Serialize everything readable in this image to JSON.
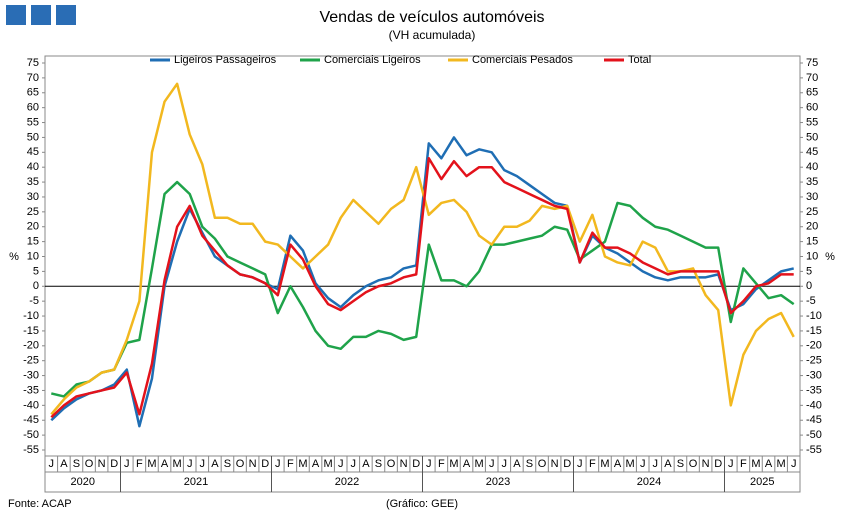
{
  "chart_data": {
    "type": "line",
    "title": "Vendas de veículos automóveis",
    "subtitle": "(VH acumulada)",
    "y_unit": "%",
    "source": "Fonte: ACAP",
    "credit": "(Gráfico: GEE)",
    "categories": [
      "J",
      "A",
      "S",
      "O",
      "N",
      "D",
      "J",
      "F",
      "M",
      "A",
      "M",
      "J",
      "J",
      "A",
      "S",
      "O",
      "N",
      "D",
      "J",
      "F",
      "M",
      "A",
      "M",
      "J",
      "J",
      "A",
      "S",
      "O",
      "N",
      "D",
      "J",
      "F",
      "M",
      "A",
      "M",
      "J",
      "J",
      "A",
      "S",
      "O",
      "N",
      "D",
      "J",
      "F",
      "M",
      "A",
      "M",
      "J",
      "J",
      "A",
      "S",
      "O",
      "N",
      "D",
      "J",
      "F",
      "M",
      "A",
      "M",
      "J"
    ],
    "x_groups": [
      {
        "label": "2020",
        "size": 6
      },
      {
        "label": "2021",
        "size": 12
      },
      {
        "label": "2022",
        "size": 12
      },
      {
        "label": "2023",
        "size": 12
      },
      {
        "label": "2024",
        "size": 12
      },
      {
        "label": "2025",
        "size": 6
      }
    ],
    "ylim": [
      -55,
      75
    ],
    "yticks": [
      -55,
      -50,
      -45,
      -40,
      -35,
      -30,
      -25,
      -20,
      -15,
      -10,
      -5,
      0,
      5,
      10,
      15,
      20,
      25,
      30,
      35,
      40,
      45,
      50,
      55,
      60,
      65,
      70,
      75
    ],
    "series": [
      {
        "name": "Ligeiros Passageiros",
        "color": "#1f6eb4",
        "values": [
          -45,
          -41,
          -38,
          -36,
          -35,
          -33,
          -28,
          -47,
          -31,
          0,
          15,
          26,
          18,
          10,
          7,
          4,
          3,
          1,
          -1,
          17,
          12,
          1,
          -4,
          -7,
          -3,
          0,
          2,
          3,
          6,
          7,
          48,
          43,
          50,
          44,
          46,
          45,
          39,
          37,
          34,
          31,
          28,
          27,
          8,
          17,
          13,
          11,
          8,
          5,
          3,
          2,
          3,
          3,
          3,
          4,
          -8,
          -6,
          -1,
          2,
          5,
          6
        ]
      },
      {
        "name": "Comerciais Ligeiros",
        "color": "#1fa34a",
        "values": [
          -36,
          -37,
          -33,
          -32,
          -29,
          -28,
          -19,
          -18,
          6,
          31,
          35,
          31,
          20,
          16,
          10,
          8,
          6,
          4,
          -9,
          0,
          -7,
          -15,
          -20,
          -21,
          -17,
          -17,
          -15,
          -16,
          -18,
          -17,
          14,
          2,
          2,
          0,
          5,
          14,
          14,
          15,
          16,
          17,
          20,
          19,
          9,
          12,
          15,
          28,
          27,
          23,
          20,
          19,
          17,
          15,
          13,
          13,
          -12,
          6,
          1,
          -4,
          -3,
          -6
        ]
      },
      {
        "name": "Comerciais Pesados",
        "color": "#f2b81f",
        "values": [
          -43,
          -38,
          -34,
          -32,
          -29,
          -28,
          -18,
          -5,
          45,
          62,
          68,
          51,
          41,
          23,
          23,
          21,
          21,
          15,
          14,
          10,
          6,
          10,
          14,
          23,
          29,
          25,
          21,
          26,
          29,
          40,
          24,
          28,
          29,
          25,
          17,
          14,
          20,
          20,
          22,
          27,
          26,
          27,
          15,
          24,
          10,
          8,
          7,
          15,
          13,
          5,
          5,
          6,
          -3,
          -8,
          -40,
          -23,
          -15,
          -11,
          -9,
          -17
        ]
      },
      {
        "name": "Total",
        "color": "#e3121b",
        "values": [
          -44,
          -40,
          -37,
          -36,
          -35,
          -34,
          -29,
          -43,
          -26,
          2,
          20,
          27,
          17,
          12,
          7,
          4,
          3,
          1,
          -3,
          14,
          9,
          0,
          -6,
          -8,
          -5,
          -2,
          0,
          1,
          3,
          4,
          43,
          36,
          42,
          37,
          40,
          40,
          35,
          33,
          31,
          29,
          27,
          26,
          8,
          18,
          13,
          13,
          11,
          8,
          6,
          4,
          5,
          5,
          5,
          5,
          -9,
          -5,
          0,
          1,
          4,
          4
        ]
      }
    ]
  }
}
